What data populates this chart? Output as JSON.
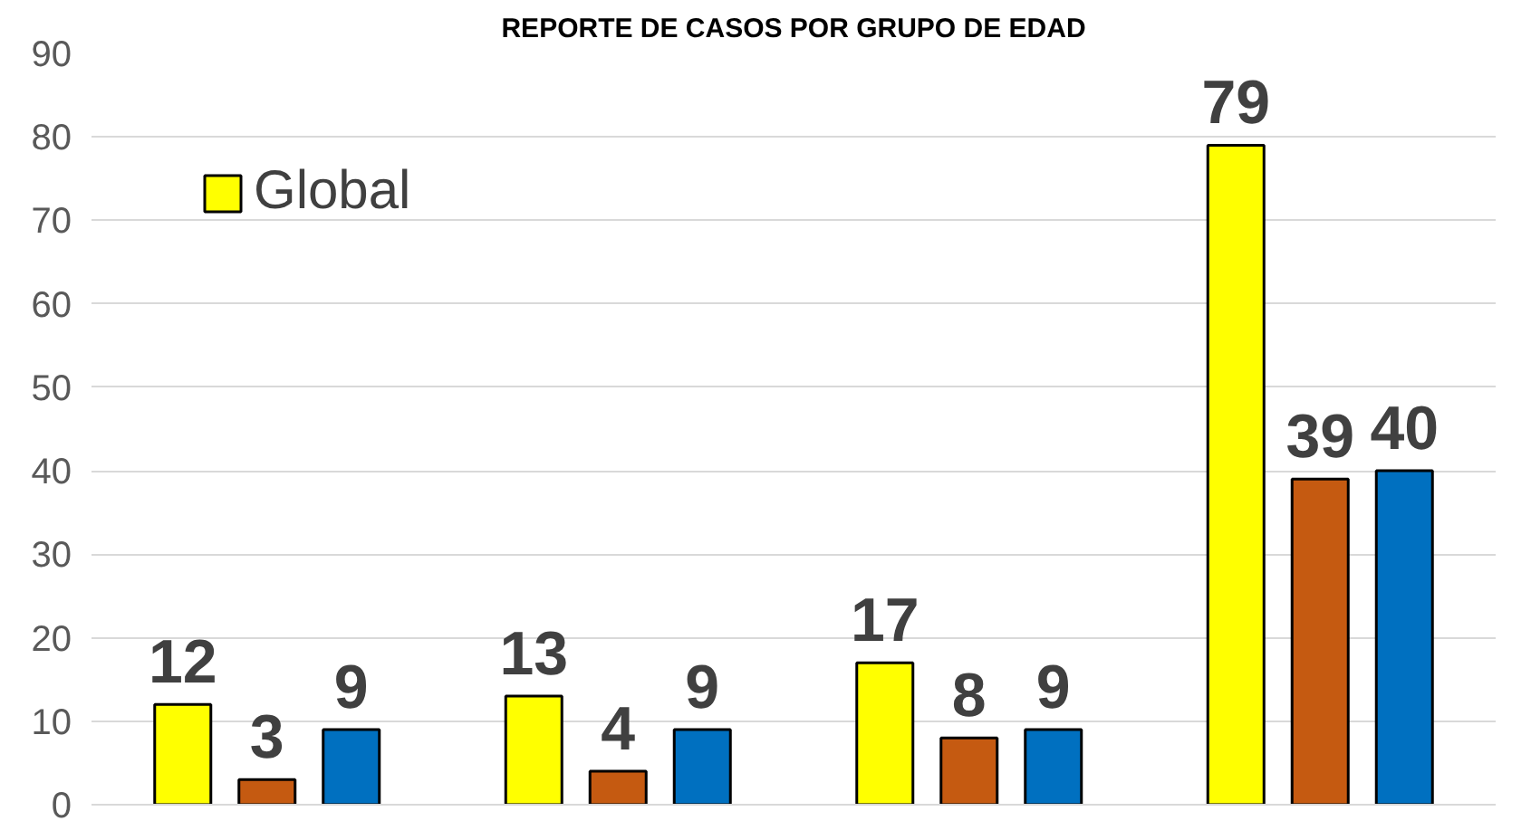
{
  "chart_data": {
    "type": "bar",
    "title": "REPORTE DE CASOS POR GRUPO DE EDAD",
    "categories": [
      null,
      null,
      null,
      null
    ],
    "series": [
      {
        "name": "Global",
        "color": "#ffff00",
        "values": [
          12,
          13,
          17,
          79
        ]
      },
      {
        "color": "#c55a11",
        "values": [
          3,
          4,
          8,
          39
        ]
      },
      {
        "color": "#0070c0",
        "values": [
          9,
          9,
          9,
          40
        ]
      }
    ],
    "ylim": [
      0,
      90
    ],
    "yticks": [
      0,
      10,
      20,
      30,
      40,
      50,
      60,
      70,
      80,
      90
    ],
    "grid": "y",
    "legend": "top left",
    "data_labels": true
  }
}
